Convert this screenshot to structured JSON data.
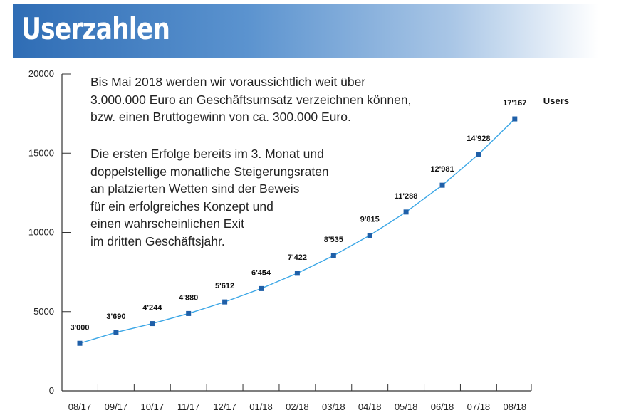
{
  "header": {
    "title": "Userzahlen"
  },
  "annotation": {
    "paragraph1": [
      "Bis Mai 2018 werden wir voraussichtlich weit über",
      "3.000.000 Euro an Geschäftsumsatz verzeichnen können,",
      "bzw. einen Bruttogewinn von ca. 300.000 Euro."
    ],
    "paragraph2": [
      "Die ersten Erfolge bereits im 3. Monat und",
      "doppelstellige monatliche Steigerungsraten",
      "an platzierten Wetten sind der Beweis",
      "für ein erfolgreiches Konzept und",
      "einen wahrscheinlichen Exit",
      "im dritten Geschäftsjahr."
    ]
  },
  "chart_data": {
    "type": "line",
    "title": "",
    "xlabel": "",
    "ylabel": "",
    "categories": [
      "08/17",
      "09/17",
      "10/17",
      "11/17",
      "12/17",
      "01/18",
      "02/18",
      "03/18",
      "04/18",
      "05/18",
      "06/18",
      "07/18",
      "08/18"
    ],
    "series": [
      {
        "name": "Users",
        "values": [
          3000,
          3690,
          4244,
          4880,
          5612,
          6454,
          7422,
          8535,
          9815,
          11288,
          12981,
          14928,
          17167
        ],
        "labels": [
          "3'000",
          "3'690",
          "4'244",
          "4'880",
          "5'612",
          "6'454",
          "7'422",
          "8'535",
          "9'815",
          "11'288",
          "12'981",
          "14'928",
          "17'167"
        ]
      }
    ],
    "ylim": [
      0,
      20000
    ],
    "yticks": [
      0,
      5000,
      10000,
      15000,
      20000
    ],
    "ytick_labels": [
      "0",
      "5000",
      "10000",
      "15000",
      "20000"
    ],
    "grid": false,
    "legend": "end-of-line",
    "colors": {
      "line": "#3aa6e6",
      "marker": "#1f5fa8",
      "axis": "#333333"
    }
  }
}
